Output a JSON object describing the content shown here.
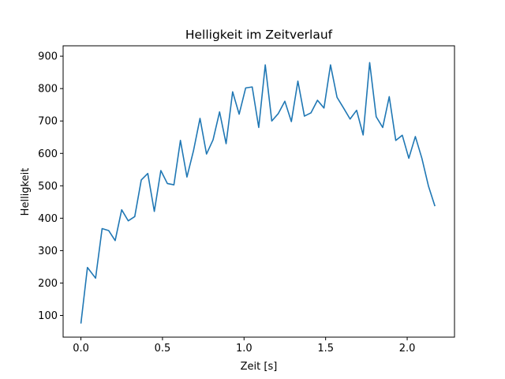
{
  "chart_data": {
    "type": "line",
    "title": "Helligkeit im Zeitverlauf",
    "xlabel": "Zeit [s]",
    "ylabel": "Helligkeit",
    "xlim": [
      -0.109,
      2.29
    ],
    "ylim": [
      33,
      932
    ],
    "grid": false,
    "x_ticks": [
      0.0,
      0.5,
      1.0,
      1.5,
      2.0
    ],
    "x_tick_labels": [
      "0.0",
      "0.5",
      "1.0",
      "1.5",
      "2.0"
    ],
    "y_ticks": [
      100,
      200,
      300,
      400,
      500,
      600,
      700,
      800,
      900
    ],
    "y_tick_labels": [
      "100",
      "200",
      "300",
      "400",
      "500",
      "600",
      "700",
      "800",
      "900"
    ],
    "series": [
      {
        "color": "#1f77b4",
        "x": [
          0.0,
          0.04,
          0.09,
          0.13,
          0.17,
          0.21,
          0.25,
          0.29,
          0.33,
          0.37,
          0.41,
          0.45,
          0.49,
          0.53,
          0.57,
          0.61,
          0.65,
          0.69,
          0.73,
          0.77,
          0.81,
          0.85,
          0.89,
          0.93,
          0.97,
          1.01,
          1.05,
          1.09,
          1.13,
          1.17,
          1.21,
          1.25,
          1.29,
          1.33,
          1.37,
          1.41,
          1.45,
          1.49,
          1.53,
          1.57,
          1.61,
          1.65,
          1.69,
          1.73,
          1.77,
          1.81,
          1.85,
          1.89,
          1.93,
          1.97,
          2.01,
          2.05,
          2.09,
          2.13,
          2.17
        ],
        "y": [
          75,
          248,
          215,
          368,
          362,
          331,
          426,
          392,
          405,
          518,
          538,
          421,
          547,
          507,
          503,
          640,
          527,
          608,
          708,
          598,
          642,
          728,
          630,
          790,
          721,
          802,
          805,
          680,
          873,
          700,
          723,
          761,
          698,
          823,
          715,
          725,
          764,
          740,
          873,
          773,
          740,
          706,
          733,
          657,
          880,
          713,
          680,
          775,
          640,
          656,
          585,
          652,
          585,
          500,
          437
        ]
      }
    ]
  }
}
